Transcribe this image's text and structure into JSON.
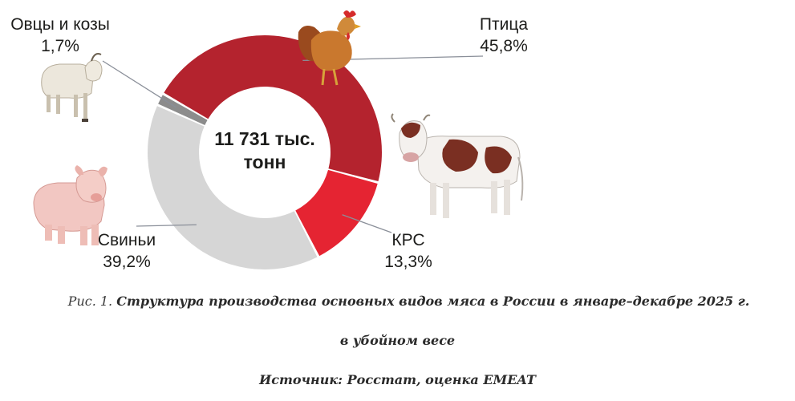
{
  "chart_data": {
    "type": "pie",
    "variant": "donut",
    "center_text": [
      "11 731 тыс.",
      "тонн"
    ],
    "slices": [
      {
        "name": "Птица",
        "value_label": "45,8%",
        "value": 45.8,
        "color": "#b4232e",
        "icon": "chicken-icon"
      },
      {
        "name": "КРС",
        "value_label": "13,3%",
        "value": 13.3,
        "color": "#e52432",
        "icon": "cow-icon"
      },
      {
        "name": "Свиньи",
        "value_label": "39,2%",
        "value": 39.2,
        "color": "#d6d6d6",
        "icon": "pig-icon"
      },
      {
        "name": "Овцы и козы",
        "value_label": "1,7%",
        "value": 1.7,
        "color": "#8c8c8c",
        "icon": "goat-icon"
      }
    ]
  },
  "caption": {
    "prefix": "Рис. 1.",
    "title_line1": "Структура производства основных видов мяса в России в январе–декабре 2025 г.",
    "title_line2": "в убойном весе",
    "source": "Источник: Росстат, оценка EMEAT"
  }
}
